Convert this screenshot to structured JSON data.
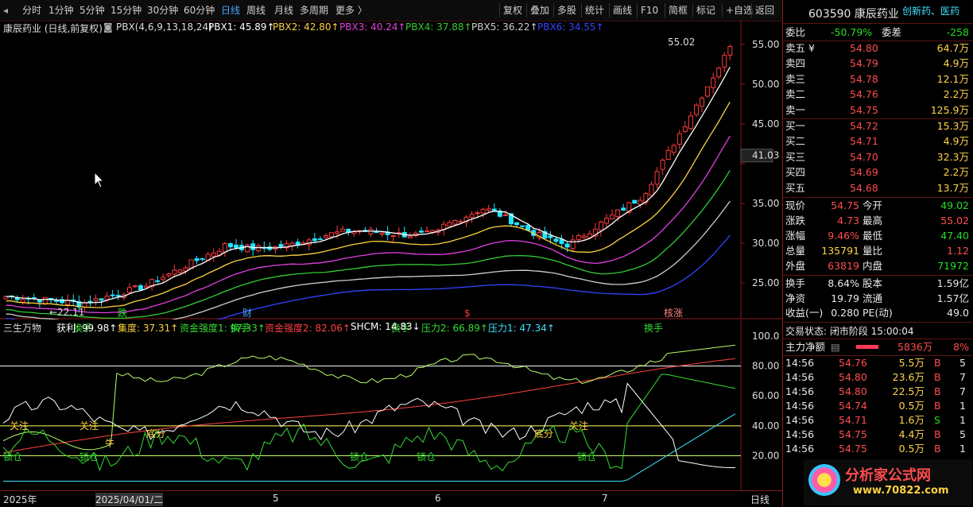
{
  "toolbar": {
    "left_tabs": [
      "分时",
      "1分钟",
      "5分钟",
      "15分钟",
      "30分钟",
      "60分钟",
      "日线",
      "周线",
      "月线",
      "多周期",
      "更多 〉"
    ],
    "active_tab": "日线",
    "right_buttons": [
      "复权",
      "叠加",
      "多股",
      "统计",
      "画线",
      "F10",
      "简框",
      "标记",
      "+自选",
      "返回"
    ]
  },
  "main": {
    "title": "康辰药业 (日线,前复权)",
    "indicator": "PBX(4,6,9,13,18,24)",
    "pbx": [
      {
        "label": "PBX1: 45.89",
        "color": "#ffffff"
      },
      {
        "label": "PBX2: 42.80",
        "color": "#ffd23f"
      },
      {
        "label": "PBX3: 40.24",
        "color": "#e040e0"
      },
      {
        "label": "PBX4: 37.88",
        "color": "#33cc33"
      },
      {
        "label": "PBX5: 36.22",
        "color": "#cfcfcf"
      },
      {
        "label": "PBX6: 34.55",
        "color": "#3344ff"
      }
    ],
    "price_axis": [
      "55.00",
      "50.00",
      "45.00",
      "41.03",
      "35.00",
      "30.00",
      "25.00"
    ],
    "high_label": "55.02",
    "low_label": "22.11",
    "markers": [
      "跌",
      "财",
      "$",
      "核涨"
    ]
  },
  "indicator_panel": {
    "name": "三生万物",
    "items": [
      {
        "label": "获利: 99.98↑",
        "color": "#ffffff"
      },
      {
        "label": "集度: 37.31↑",
        "color": "#ffd23f"
      },
      {
        "label": "资金强度1: 97.33↑",
        "color": "#33dd33"
      },
      {
        "label": "资金强度2: 82.06↑",
        "color": "#ff4040"
      },
      {
        "label": "SHCM: 14.83↓",
        "color": "#ffffff"
      },
      {
        "label": "压力2: 66.89↑",
        "color": "#33dd33"
      },
      {
        "label": "压力1: 47.34↑",
        "color": "#3fe0ff"
      }
    ],
    "axis": [
      "100.0",
      "80.00",
      "60.00",
      "40.00",
      "20.00"
    ],
    "annotations": [
      "换手",
      "换手",
      "换手",
      "换手",
      "关注",
      "关注",
      "牛",
      "底分",
      "底分",
      "关注",
      "锁仓",
      "锁仓",
      "锁仓",
      "锁仓",
      "锁仓"
    ]
  },
  "date_axis": {
    "labels": [
      "2025年",
      "2025/04/01/二",
      "5",
      "6",
      "7"
    ],
    "period": "日线"
  },
  "quote": {
    "code": "603590",
    "name": "康辰药业",
    "tags": "创新药、医药",
    "weibi_label": "委比",
    "weibi": "-50.79%",
    "weicha_label": "委差",
    "weicha": "-258",
    "asks": [
      {
        "label": "卖五 ¥",
        "price": "54.80",
        "vol": "64.7万"
      },
      {
        "label": "卖四",
        "price": "54.79",
        "vol": "4.9万"
      },
      {
        "label": "卖三",
        "price": "54.78",
        "vol": "12.1万"
      },
      {
        "label": "卖二",
        "price": "54.76",
        "vol": "2.2万"
      },
      {
        "label": "卖一",
        "price": "54.75",
        "vol": "125.9万"
      }
    ],
    "bids": [
      {
        "label": "买一",
        "price": "54.72",
        "vol": "15.3万"
      },
      {
        "label": "买二",
        "price": "54.71",
        "vol": "4.9万"
      },
      {
        "label": "买三",
        "price": "54.70",
        "vol": "32.3万"
      },
      {
        "label": "买四",
        "price": "54.69",
        "vol": "2.2万"
      },
      {
        "label": "买五",
        "price": "54.68",
        "vol": "13.7万"
      }
    ],
    "stats": [
      {
        "l1": "现价",
        "v1": "54.75",
        "c1": "red",
        "l2": "今开",
        "v2": "49.02",
        "c2": "green"
      },
      {
        "l1": "涨跌",
        "v1": "4.73",
        "c1": "red",
        "l2": "最高",
        "v2": "55.02",
        "c2": "red"
      },
      {
        "l1": "涨幅",
        "v1": "9.46%",
        "c1": "red",
        "l2": "最低",
        "v2": "47.40",
        "c2": "green"
      },
      {
        "l1": "总量",
        "v1": "135791",
        "c1": "yellow",
        "l2": "量比",
        "v2": "1.12",
        "c2": "red"
      },
      {
        "l1": "外盘",
        "v1": "63819",
        "c1": "red",
        "l2": "内盘",
        "v2": "71972",
        "c2": "green"
      }
    ],
    "stats2": [
      {
        "l1": "换手",
        "v1": "8.64%",
        "l2": "股本",
        "v2": "1.59亿"
      },
      {
        "l1": "净资",
        "v1": "19.79",
        "l2": "流通",
        "v2": "1.57亿"
      },
      {
        "l1": "收益(一)",
        "v1": "0.280",
        "l2": "PE(动)",
        "v2": "49.0"
      }
    ],
    "trade_status": "交易状态: 闭市阶段 15:00:04",
    "main_flow_label": "主力净额",
    "main_flow_value": "5836万",
    "main_flow_pct": "8%",
    "ticks": [
      {
        "t": "14:56",
        "p": "54.76",
        "v": "5.5万",
        "s": "B",
        "n": "5"
      },
      {
        "t": "14:56",
        "p": "54.80",
        "v": "23.6万",
        "s": "B",
        "n": "7"
      },
      {
        "t": "14:56",
        "p": "54.80",
        "v": "22.5万",
        "s": "B",
        "n": "7"
      },
      {
        "t": "14:56",
        "p": "54.74",
        "v": "0.5万",
        "s": "B",
        "n": "1"
      },
      {
        "t": "14:56",
        "p": "54.71",
        "v": "1.6万",
        "s": "S",
        "n": "1"
      },
      {
        "t": "14:56",
        "p": "54.75",
        "v": "4.4万",
        "s": "B",
        "n": "5"
      },
      {
        "t": "14:56",
        "p": "54.75",
        "v": "0.5万",
        "s": "B",
        "n": "1"
      }
    ],
    "watermark": "分析家公式网",
    "watermark_url": "www.70822.com"
  },
  "colors": {
    "up": "#ff3b3b",
    "down": "#22e5ff",
    "bg": "#000000",
    "border": "#8b1a1a"
  }
}
